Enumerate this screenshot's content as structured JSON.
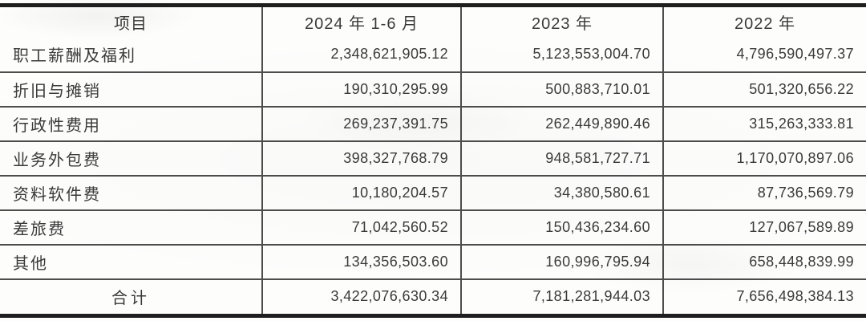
{
  "document_type": "financial-expense-table",
  "colors": {
    "border_thin": "#4d4d4d",
    "border_thick": "#1e1e1e",
    "text": "#3a3a3a",
    "background": "#fdfdfc"
  },
  "table": {
    "columns": [
      "项目",
      "2024 年 1-6 月",
      "2023 年",
      "2022 年"
    ],
    "rows": [
      [
        "职工薪酬及福利",
        "2,348,621,905.12",
        "5,123,553,004.70",
        "4,796,590,497.37"
      ],
      [
        "折旧与摊销",
        "190,310,295.99",
        "500,883,710.01",
        "501,320,656.22"
      ],
      [
        "行政性费用",
        "269,237,391.75",
        "262,449,890.46",
        "315,263,333.81"
      ],
      [
        "业务外包费",
        "398,327,768.79",
        "948,581,727.71",
        "1,170,070,897.06"
      ],
      [
        "资料软件费",
        "10,180,204.57",
        "34,380,580.61",
        "87,736,569.79"
      ],
      [
        "差旅费",
        "71,042,560.52",
        "150,436,234.60",
        "127,067,589.89"
      ],
      [
        "其他",
        "134,356,503.60",
        "160,996,795.94",
        "658,448,839.99"
      ]
    ],
    "total_row": [
      "合计",
      "3,422,076,630.34",
      "7,181,281,944.03",
      "7,656,498,384.13"
    ]
  },
  "chart_data": {
    "type": "table",
    "title": "",
    "categories": [
      "职工薪酬及福利",
      "折旧与摊销",
      "行政性费用",
      "业务外包费",
      "资料软件费",
      "差旅费",
      "其他",
      "合计"
    ],
    "series": [
      {
        "name": "2024 年 1-6 月",
        "values": [
          2348621905.12,
          190310295.99,
          269237391.75,
          398327768.79,
          10180204.57,
          71042560.52,
          134356503.6,
          3422076630.34
        ]
      },
      {
        "name": "2023 年",
        "values": [
          5123553004.7,
          500883710.01,
          262449890.46,
          948581727.71,
          34380580.61,
          150436234.6,
          160996795.94,
          7181281944.03
        ]
      },
      {
        "name": "2022 年",
        "values": [
          4796590497.37,
          501320656.22,
          315263333.81,
          1170070897.06,
          87736569.79,
          127067589.89,
          658448839.99,
          7656498384.13
        ]
      }
    ]
  }
}
